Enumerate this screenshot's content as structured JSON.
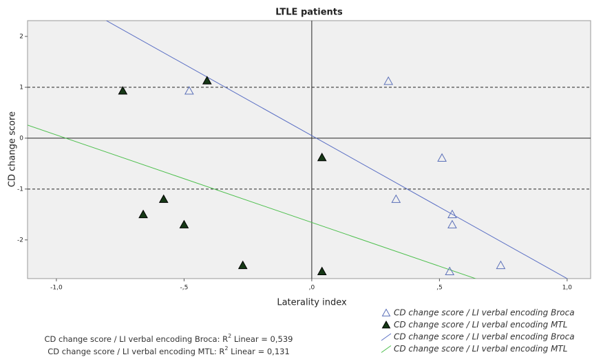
{
  "chart_data": {
    "type": "scatter",
    "title": "LTLE patients",
    "x_label": "Laterality index",
    "y_label": "CD change score",
    "xlim": [
      -1.113,
      1.092
    ],
    "ylim": [
      -2.76,
      2.31
    ],
    "xticks": [
      {
        "value": -1.0,
        "label": "-1,0"
      },
      {
        "value": -0.5,
        "label": "-,5"
      },
      {
        "value": 0,
        "label": ",0"
      },
      {
        "value": 0.5,
        "label": ",5"
      },
      {
        "value": 1.0,
        "label": "1,0"
      }
    ],
    "yticks": [
      2,
      1,
      0,
      -1,
      -2
    ],
    "reference_lines": [
      {
        "axis": "y",
        "value": 1,
        "dash": true
      },
      {
        "axis": "y",
        "value": 0,
        "dash": false
      },
      {
        "axis": "y",
        "value": -1,
        "dash": true
      },
      {
        "axis": "x",
        "value": 0,
        "dash": false
      }
    ],
    "series": [
      {
        "name": "CD change score / LI verbal encoding Broca",
        "color": "#5a6fb8",
        "marker": "open-triangle",
        "x": [
          -0.48,
          0.3,
          0.51,
          0.33,
          0.55,
          0.55,
          0.74,
          0.54
        ],
        "values": [
          0.93,
          1.12,
          -0.39,
          -1.2,
          -1.5,
          -1.7,
          -2.5,
          -2.62
        ]
      },
      {
        "name": "CD change score / LI verbal encoding MTL",
        "color": "#163816",
        "marker": "filled-triangle",
        "x": [
          -0.74,
          -0.41,
          0.04,
          -0.58,
          -0.66,
          -0.5,
          -0.27,
          0.04
        ],
        "values": [
          0.93,
          1.13,
          -0.38,
          -1.2,
          -1.5,
          -1.7,
          -2.5,
          -2.62
        ]
      }
    ],
    "fit_lines": [
      {
        "name": "CD change score / LI verbal encoding Broca",
        "color": "#5a6fc4",
        "slope": -2.81,
        "intercept": 0.05
      },
      {
        "name": "CD change score / LI verbal encoding MTL",
        "color": "#4cbf4c",
        "slope": -1.72,
        "intercept": -1.657
      }
    ],
    "annotations": [
      {
        "prefix": "CD change score / LI verbal encoding Broca: R",
        "sup": "2",
        "suffix": " Linear = 0,539"
      },
      {
        "prefix": "CD change score / LI verbal encoding MTL: R",
        "sup": "2",
        "suffix": " Linear = 0,131"
      }
    ]
  }
}
